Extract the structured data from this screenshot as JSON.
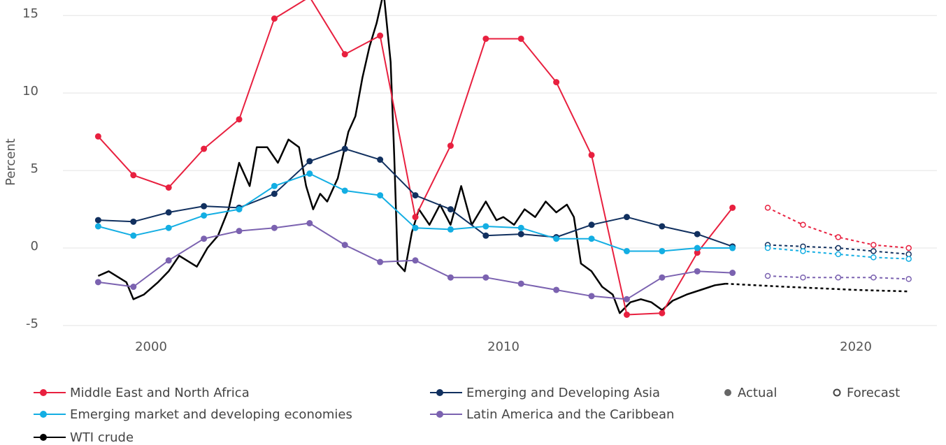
{
  "chart_data": {
    "type": "line",
    "y_label": "Percent",
    "x": [
      1998.5,
      1999.5,
      2000.5,
      2001.5,
      2002.5,
      2003.5,
      2004.5,
      2005.5,
      2006.5,
      2007.5,
      2008.5,
      2009.5,
      2010.5,
      2011.5,
      2012.5,
      2013.5,
      2014.5,
      2015.5,
      2016.5
    ],
    "forecast_x": [
      2017.5,
      2018.5,
      2019.5,
      2020.5,
      2021.5
    ],
    "xlim": [
      1997.5,
      2022.3
    ],
    "xticks": [
      2000,
      2010,
      2020
    ],
    "ylim": [
      -5,
      16
    ],
    "yticks": [
      -5,
      0,
      5,
      10,
      15
    ],
    "grid": true,
    "actual_label": "Actual",
    "forecast_label": "Forecast",
    "series": [
      {
        "name": "Middle East and North Africa",
        "color": "#e8203f",
        "markers": true,
        "values": [
          7.2,
          4.7,
          3.9,
          6.4,
          8.3,
          14.8,
          16.2,
          12.5,
          13.7,
          2.0,
          6.6,
          13.5,
          13.5,
          10.7,
          6.0,
          -4.3,
          -4.2,
          -0.3,
          2.6
        ],
        "forecast_values": [
          2.6,
          1.5,
          0.7,
          0.2,
          0.0
        ]
      },
      {
        "name": "Emerging and Developing Asia",
        "color": "#11305f",
        "markers": true,
        "values": [
          1.8,
          1.7,
          2.3,
          2.7,
          2.6,
          3.5,
          5.6,
          6.4,
          5.7,
          3.4,
          2.5,
          0.8,
          0.9,
          0.7,
          1.5,
          2.0,
          1.4,
          0.9,
          0.1
        ],
        "forecast_values": [
          0.2,
          0.1,
          0.0,
          -0.2,
          -0.4
        ]
      },
      {
        "name": "Emerging market and developing economies",
        "color": "#13aee3",
        "markers": true,
        "values": [
          1.4,
          0.8,
          1.3,
          2.1,
          2.5,
          4.0,
          4.8,
          3.7,
          3.4,
          1.3,
          1.2,
          1.4,
          1.3,
          0.6,
          0.6,
          -0.2,
          -0.2,
          0.0,
          0.0
        ],
        "forecast_values": [
          0.0,
          -0.2,
          -0.4,
          -0.6,
          -0.7
        ]
      },
      {
        "name": "Latin America and the Caribbean",
        "color": "#7b62b0",
        "markers": true,
        "values": [
          -2.2,
          -2.5,
          -0.8,
          0.6,
          1.1,
          1.3,
          1.6,
          0.2,
          -0.9,
          -0.8,
          -1.9,
          -1.9,
          -2.3,
          -2.7,
          -3.1,
          -3.3,
          -1.9,
          -1.5,
          -1.6
        ],
        "forecast_values": [
          -1.8,
          -1.9,
          -1.9,
          -1.9,
          -2.0
        ]
      },
      {
        "name": "WTI crude",
        "color": "#000000",
        "markers": false,
        "x": [
          1998.5,
          1998.8,
          1999.3,
          1999.5,
          1999.8,
          2000.2,
          2000.5,
          2000.8,
          2001.3,
          2001.6,
          2001.9,
          2002.2,
          2002.5,
          2002.8,
          2003.0,
          2003.3,
          2003.6,
          2003.9,
          2004.2,
          2004.4,
          2004.6,
          2004.8,
          2005.0,
          2005.3,
          2005.6,
          2005.8,
          2006.0,
          2006.2,
          2006.4,
          2006.6,
          2006.8,
          2006.9,
          2007.0,
          2007.2,
          2007.4,
          2007.6,
          2007.9,
          2008.2,
          2008.5,
          2008.8,
          2009.1,
          2009.5,
          2009.8,
          2010.0,
          2010.3,
          2010.6,
          2010.9,
          2011.2,
          2011.5,
          2011.8,
          2012.0,
          2012.2,
          2012.5,
          2012.8,
          2013.1,
          2013.3,
          2013.6,
          2013.9,
          2014.2,
          2014.5,
          2014.8,
          2015.2,
          2015.6,
          2016.0,
          2016.3
        ],
        "values": [
          -1.8,
          -1.5,
          -2.2,
          -3.3,
          -3.0,
          -2.2,
          -1.5,
          -0.5,
          -1.2,
          0.0,
          0.8,
          2.5,
          5.5,
          4.0,
          6.5,
          6.5,
          5.5,
          7.0,
          6.5,
          4.0,
          2.5,
          3.5,
          3.0,
          4.5,
          7.5,
          8.5,
          11.0,
          13.0,
          14.5,
          16.5,
          12.0,
          6.0,
          -1.0,
          -1.5,
          1.0,
          2.5,
          1.5,
          2.8,
          1.5,
          4.0,
          1.5,
          3.0,
          1.8,
          2.0,
          1.5,
          2.5,
          2.0,
          3.0,
          2.3,
          2.8,
          2.0,
          -1.0,
          -1.5,
          -2.5,
          -3.0,
          -4.2,
          -3.5,
          -3.3,
          -3.5,
          -4.0,
          -3.4,
          -3.0,
          -2.7,
          -2.4,
          -2.3
        ],
        "forecast_x": [
          2016.3,
          2018.0,
          2020.0,
          2021.5
        ],
        "forecast_values": [
          -2.3,
          -2.5,
          -2.7,
          -2.8
        ]
      }
    ]
  }
}
